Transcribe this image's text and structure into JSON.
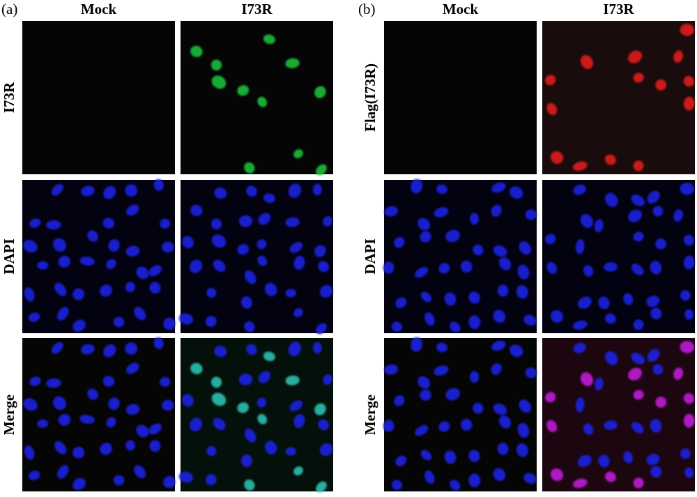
{
  "panels": [
    {
      "label": "(a)",
      "columns": [
        "Mock",
        "I73R"
      ],
      "rows": [
        "I73R",
        "DAPI",
        "Merge"
      ]
    },
    {
      "label": "(b)",
      "columns": [
        "Mock",
        "I73R"
      ],
      "rows": [
        "Flag(I73R)",
        "DAPI",
        "Merge"
      ]
    }
  ]
}
